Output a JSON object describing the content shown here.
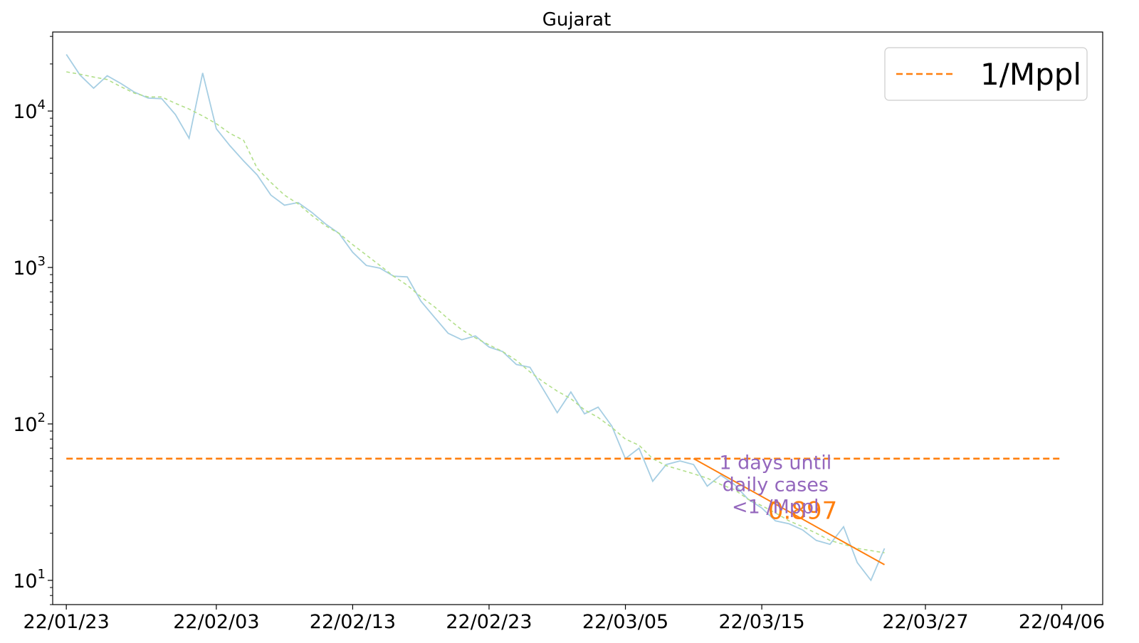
{
  "chart_data": {
    "type": "line",
    "title": "Gujarat",
    "xlabel": "",
    "ylabel": "",
    "y_scale": "log",
    "ylim": [
      7,
      32000
    ],
    "xlim": [
      "2022-01-22",
      "2022-04-09"
    ],
    "grid": false,
    "legend_position": "top-right",
    "x_tick_labels": [
      {
        "date": "2022-01-23",
        "label": "22/01/23"
      },
      {
        "date": "2022-02-03",
        "label": "22/02/03"
      },
      {
        "date": "2022-02-13",
        "label": "22/02/13"
      },
      {
        "date": "2022-02-23",
        "label": "22/02/23"
      },
      {
        "date": "2022-03-05",
        "label": "22/03/05"
      },
      {
        "date": "2022-03-15",
        "label": "22/03/15"
      },
      {
        "date": "2022-03-27",
        "label": "22/03/27"
      },
      {
        "date": "2022-04-06",
        "label": "22/04/06"
      }
    ],
    "y_tick_labels": [
      {
        "value": 10,
        "base": "10",
        "exp": "1"
      },
      {
        "value": 100,
        "base": "10",
        "exp": "2"
      },
      {
        "value": 1000,
        "base": "10",
        "exp": "3"
      },
      {
        "value": 10000,
        "base": "10",
        "exp": "4"
      }
    ],
    "series": [
      {
        "role": "daily",
        "color": "#a6cee3",
        "style": "solid",
        "points": [
          [
            "2022-01-23",
            23000
          ],
          [
            "2022-01-24",
            17000
          ],
          [
            "2022-01-25",
            14000
          ],
          [
            "2022-01-26",
            16800
          ],
          [
            "2022-01-27",
            15000
          ],
          [
            "2022-01-28",
            13200
          ],
          [
            "2022-01-29",
            12100
          ],
          [
            "2022-01-30",
            12000
          ],
          [
            "2022-01-31",
            9500
          ],
          [
            "2022-02-01",
            6700
          ],
          [
            "2022-02-02",
            17500
          ],
          [
            "2022-02-03",
            7700
          ],
          [
            "2022-02-04",
            6000
          ],
          [
            "2022-02-05",
            4800
          ],
          [
            "2022-02-06",
            3900
          ],
          [
            "2022-02-07",
            2900
          ],
          [
            "2022-02-08",
            2500
          ],
          [
            "2022-02-09",
            2600
          ],
          [
            "2022-02-10",
            2250
          ],
          [
            "2022-02-11",
            1900
          ],
          [
            "2022-02-12",
            1650
          ],
          [
            "2022-02-13",
            1250
          ],
          [
            "2022-02-14",
            1030
          ],
          [
            "2022-02-15",
            990
          ],
          [
            "2022-02-16",
            880
          ],
          [
            "2022-02-17",
            870
          ],
          [
            "2022-02-18",
            610
          ],
          [
            "2022-02-19",
            480
          ],
          [
            "2022-02-20",
            380
          ],
          [
            "2022-02-21",
            345
          ],
          [
            "2022-02-22",
            365
          ],
          [
            "2022-02-23",
            310
          ],
          [
            "2022-02-24",
            290
          ],
          [
            "2022-02-25",
            240
          ],
          [
            "2022-02-26",
            230
          ],
          [
            "2022-02-27",
            165
          ],
          [
            "2022-02-28",
            118
          ],
          [
            "2022-03-01",
            160
          ],
          [
            "2022-03-02",
            116
          ],
          [
            "2022-03-03",
            128
          ],
          [
            "2022-03-04",
            97
          ],
          [
            "2022-03-05",
            60
          ],
          [
            "2022-03-06",
            70
          ],
          [
            "2022-03-07",
            43
          ],
          [
            "2022-03-08",
            55
          ],
          [
            "2022-03-09",
            58
          ],
          [
            "2022-03-10",
            55
          ],
          [
            "2022-03-11",
            40
          ],
          [
            "2022-03-12",
            47
          ],
          [
            "2022-03-13",
            41
          ],
          [
            "2022-03-14",
            33
          ],
          [
            "2022-03-15",
            29
          ],
          [
            "2022-03-16",
            24
          ],
          [
            "2022-03-17",
            23
          ],
          [
            "2022-03-18",
            21
          ],
          [
            "2022-03-19",
            18
          ],
          [
            "2022-03-20",
            17
          ],
          [
            "2022-03-21",
            22
          ],
          [
            "2022-03-22",
            13
          ],
          [
            "2022-03-23",
            10
          ],
          [
            "2022-03-24",
            16
          ]
        ]
      },
      {
        "role": "rolling-average",
        "color": "#b2df8a",
        "style": "dashed",
        "points": [
          [
            "2022-01-23",
            17800
          ],
          [
            "2022-01-24",
            17200
          ],
          [
            "2022-01-25",
            16500
          ],
          [
            "2022-01-26",
            15900
          ],
          [
            "2022-01-27",
            14300
          ],
          [
            "2022-01-28",
            13000
          ],
          [
            "2022-01-29",
            12300
          ],
          [
            "2022-01-30",
            12300
          ],
          [
            "2022-01-31",
            11200
          ],
          [
            "2022-02-01",
            10300
          ],
          [
            "2022-02-02",
            9300
          ],
          [
            "2022-02-03",
            8300
          ],
          [
            "2022-02-04",
            7200
          ],
          [
            "2022-02-05",
            6500
          ],
          [
            "2022-02-06",
            4300
          ],
          [
            "2022-02-07",
            3500
          ],
          [
            "2022-02-08",
            2900
          ],
          [
            "2022-02-09",
            2550
          ],
          [
            "2022-02-10",
            2150
          ],
          [
            "2022-02-11",
            1850
          ],
          [
            "2022-02-12",
            1650
          ],
          [
            "2022-02-13",
            1400
          ],
          [
            "2022-02-14",
            1200
          ],
          [
            "2022-02-15",
            1030
          ],
          [
            "2022-02-16",
            880
          ],
          [
            "2022-02-17",
            770
          ],
          [
            "2022-02-18",
            650
          ],
          [
            "2022-02-19",
            560
          ],
          [
            "2022-02-20",
            470
          ],
          [
            "2022-02-21",
            400
          ],
          [
            "2022-02-22",
            355
          ],
          [
            "2022-02-23",
            320
          ],
          [
            "2022-02-24",
            290
          ],
          [
            "2022-02-25",
            255
          ],
          [
            "2022-02-26",
            215
          ],
          [
            "2022-02-27",
            185
          ],
          [
            "2022-02-28",
            162
          ],
          [
            "2022-03-01",
            145
          ],
          [
            "2022-03-02",
            123
          ],
          [
            "2022-03-03",
            110
          ],
          [
            "2022-03-04",
            95
          ],
          [
            "2022-03-05",
            80
          ],
          [
            "2022-03-06",
            73
          ],
          [
            "2022-03-07",
            60
          ],
          [
            "2022-03-08",
            54
          ],
          [
            "2022-03-09",
            51
          ],
          [
            "2022-03-10",
            48
          ],
          [
            "2022-03-11",
            45
          ],
          [
            "2022-03-12",
            41
          ],
          [
            "2022-03-13",
            38
          ],
          [
            "2022-03-14",
            33
          ],
          [
            "2022-03-15",
            30
          ],
          [
            "2022-03-16",
            27
          ],
          [
            "2022-03-17",
            24
          ],
          [
            "2022-03-18",
            22
          ],
          [
            "2022-03-19",
            20
          ],
          [
            "2022-03-20",
            18
          ],
          [
            "2022-03-21",
            17
          ],
          [
            "2022-03-22",
            16
          ],
          [
            "2022-03-23",
            15.5
          ],
          [
            "2022-03-24",
            15
          ]
        ]
      },
      {
        "role": "trend-fit",
        "color": "#ff7f0e",
        "style": "solid",
        "points": [
          [
            "2022-03-10",
            60
          ],
          [
            "2022-03-24",
            12.6
          ]
        ]
      },
      {
        "name": "1/Mppl",
        "role": "threshold",
        "color": "#ff7f0e",
        "style": "dashed",
        "points": [
          [
            "2022-01-23",
            60
          ],
          [
            "2022-04-06",
            60
          ]
        ]
      }
    ],
    "annotations": [
      {
        "text": "0.897",
        "color": "#ff7f0e",
        "at": [
          "2022-03-18",
          28
        ]
      },
      {
        "lines": [
          "1 days until",
          "daily cases",
          "<1 /Mppl"
        ],
        "color": "#9467bd",
        "at": [
          "2022-03-16",
          40
        ]
      }
    ]
  }
}
